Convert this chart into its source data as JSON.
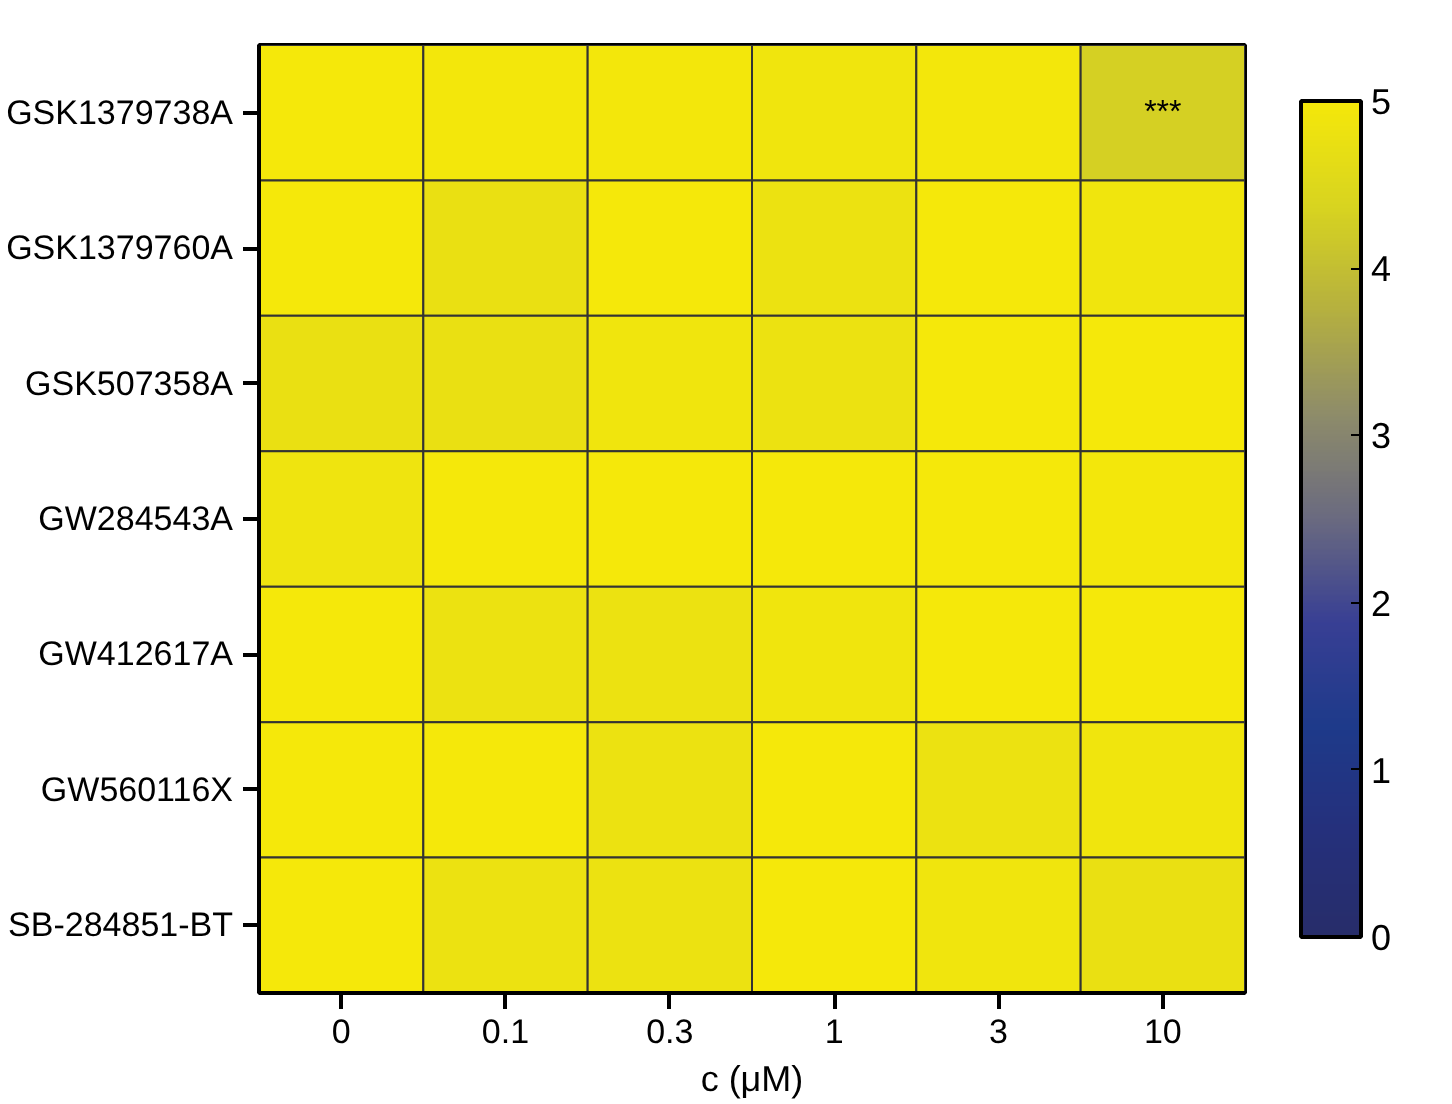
{
  "chart_data": {
    "type": "heatmap",
    "xlabel": "c (μM)",
    "categories": [
      "0",
      "0.1",
      "0.3",
      "1",
      "3",
      "10"
    ],
    "y_categories": [
      "GSK1379738A",
      "GSK1379760A",
      "GSK507358A",
      "GW284543A",
      "GW412617A",
      "GW560116X",
      "SB-284851-BT"
    ],
    "cells": [
      [
        5,
        4.95,
        4.95,
        4.9,
        4.95,
        4.3
      ],
      [
        5,
        4.75,
        5,
        4.8,
        5,
        4.9
      ],
      [
        4.75,
        4.75,
        4.9,
        4.8,
        5,
        5
      ],
      [
        4.85,
        5,
        5,
        5,
        5,
        4.95
      ],
      [
        5,
        4.8,
        4.8,
        4.9,
        5,
        5
      ],
      [
        5,
        5,
        4.8,
        5,
        4.8,
        4.9
      ],
      [
        5,
        4.8,
        4.8,
        5,
        4.9,
        4.75
      ]
    ],
    "clim": [
      0,
      5
    ],
    "cticks": [
      0,
      1,
      2,
      3,
      4,
      5
    ],
    "colors": [
      "#272d6a",
      "#25307c",
      "#1e3a8a",
      "#383f94",
      "#6a6a80",
      "#8e8c6a",
      "#b5b040",
      "#d8d420",
      "#f5e80a"
    ],
    "annotations": [
      "***"
    ]
  }
}
